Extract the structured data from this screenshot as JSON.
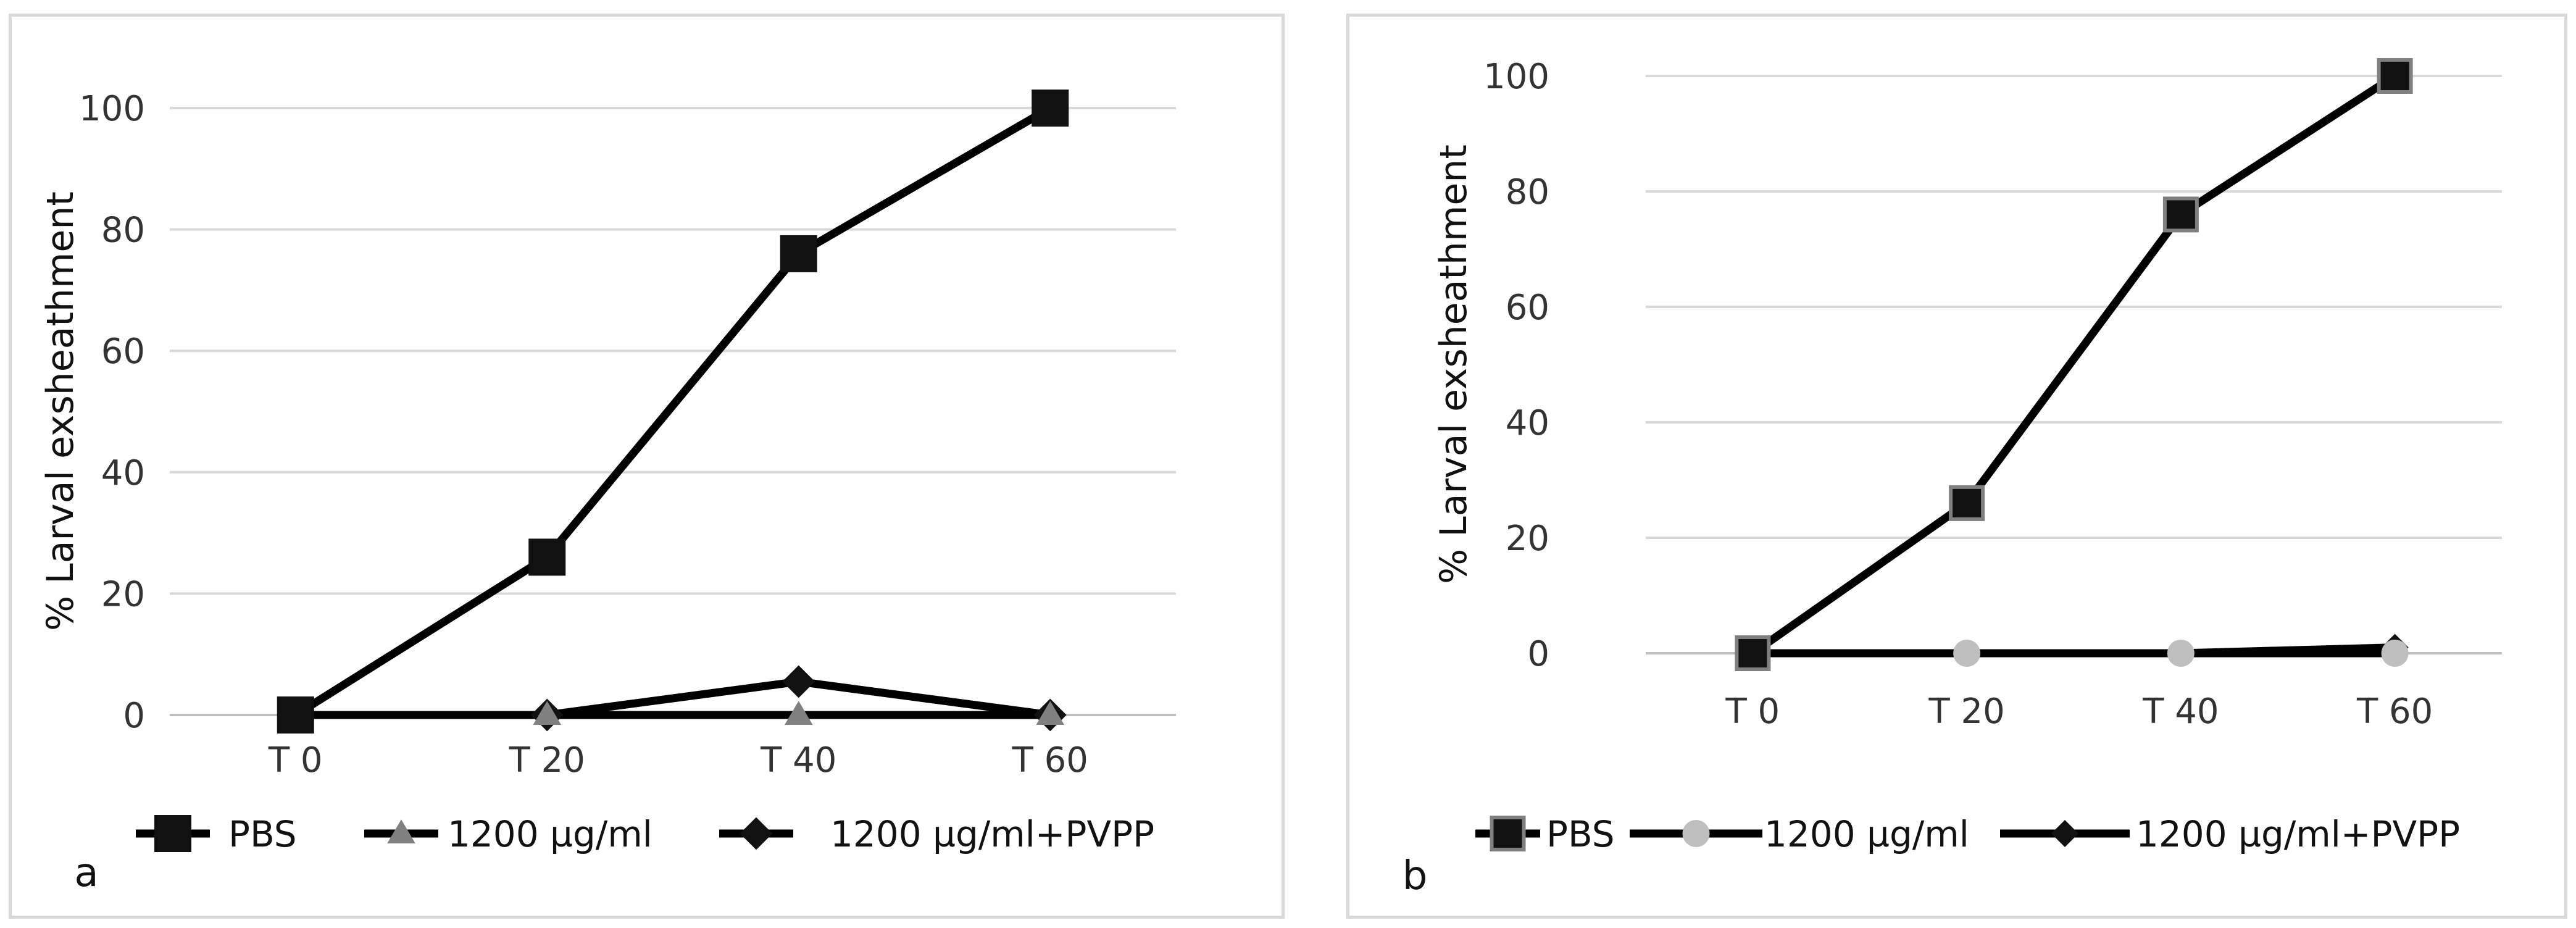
{
  "chart_data": [
    {
      "panel": "a",
      "type": "line",
      "ylabel": "% Larval exsheathment",
      "xlabel": "",
      "categories": [
        "T 0",
        "T 20",
        "T 40",
        "T 60"
      ],
      "ylim": [
        0,
        100
      ],
      "yticks": [
        0,
        20,
        40,
        60,
        80,
        100
      ],
      "grid": true,
      "legend": "bottom",
      "series": [
        {
          "name": "PBS",
          "marker": "square",
          "marker_color": "#111111",
          "values": [
            0,
            26,
            76,
            100
          ]
        },
        {
          "name": "1200 µg/ml",
          "marker": "triangle",
          "marker_color": "#808080",
          "values": [
            0,
            0,
            0,
            0
          ]
        },
        {
          "name": "1200 µg/ml+PVPP",
          "marker": "diamond",
          "marker_color": "#111111",
          "values": [
            0,
            0,
            5.5,
            0
          ]
        }
      ]
    },
    {
      "panel": "b",
      "type": "line",
      "ylabel": "% Larval exsheathment",
      "xlabel": "",
      "categories": [
        "T 0",
        "T 20",
        "T 40",
        "T 60"
      ],
      "ylim": [
        0,
        100
      ],
      "yticks": [
        0,
        20,
        40,
        60,
        80,
        100
      ],
      "grid": true,
      "legend": "bottom",
      "series": [
        {
          "name": "PBS",
          "marker": "square",
          "marker_color": "#111111",
          "marker_edge": "#808080",
          "values": [
            0,
            26,
            76,
            100
          ]
        },
        {
          "name": "1200 µg/ml",
          "marker": "circle",
          "marker_color": "#bfbfbf",
          "values": [
            0,
            0,
            0,
            0
          ]
        },
        {
          "name": "1200 µg/ml+PVPP",
          "marker": "diamond",
          "marker_color": "#111111",
          "values": [
            0,
            0,
            0,
            1
          ]
        }
      ]
    }
  ]
}
